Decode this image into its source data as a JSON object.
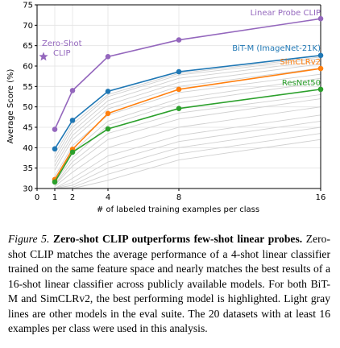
{
  "chart_data": {
    "type": "line",
    "xlabel": "# of labeled training examples per class",
    "ylabel": "Average Score (%)",
    "ylim": [
      30,
      75
    ],
    "xlim": [
      0,
      16
    ],
    "x_ticks": [
      0,
      1,
      2,
      4,
      8,
      16
    ],
    "y_ticks": [
      30,
      35,
      40,
      45,
      50,
      55,
      60,
      65,
      70,
      75
    ],
    "grid": true,
    "series": [
      {
        "name": "Linear Probe CLIP",
        "color": "#9467bd",
        "x": [
          1,
          2,
          4,
          8,
          16
        ],
        "values": [
          44.5,
          54.0,
          62.3,
          66.4,
          71.6
        ]
      },
      {
        "name": "BiT-M (ImageNet-21K)",
        "color": "#1f77b4",
        "x": [
          1,
          2,
          4,
          8,
          16
        ],
        "values": [
          39.7,
          46.7,
          53.8,
          58.6,
          62.6
        ]
      },
      {
        "name": "SimCLRv2",
        "color": "#ff7f0e",
        "x": [
          1,
          2,
          4,
          8,
          16
        ],
        "values": [
          32.2,
          39.6,
          48.4,
          54.3,
          59.4
        ]
      },
      {
        "name": "ResNet50",
        "color": "#2ca02c",
        "x": [
          1,
          2,
          4,
          8,
          16
        ],
        "values": [
          31.6,
          38.9,
          44.6,
          49.6,
          54.3
        ]
      }
    ],
    "background_models": [
      [
        33.0,
        40.5,
        48.0,
        53.5,
        58.0
      ],
      [
        34.5,
        42.0,
        49.5,
        55.0,
        59.5
      ],
      [
        35.5,
        43.0,
        50.5,
        56.0,
        60.5
      ],
      [
        36.5,
        44.0,
        51.5,
        57.0,
        61.2
      ],
      [
        37.5,
        45.0,
        52.5,
        57.8,
        61.8
      ],
      [
        38.5,
        45.8,
        53.0,
        58.2,
        62.2
      ],
      [
        32.5,
        39.0,
        46.5,
        52.0,
        57.0
      ],
      [
        31.5,
        37.5,
        45.5,
        51.0,
        56.0
      ],
      [
        31.0,
        36.5,
        43.5,
        48.5,
        53.0
      ],
      [
        30.8,
        35.5,
        42.0,
        47.0,
        52.0
      ],
      [
        30.5,
        34.0,
        40.0,
        45.0,
        50.0
      ],
      [
        30.0,
        32.5,
        38.0,
        43.0,
        48.0
      ],
      [
        30.0,
        31.5,
        36.5,
        41.5,
        46.5
      ],
      [
        30.0,
        30.8,
        35.0,
        40.0,
        45.0
      ],
      [
        30.0,
        30.3,
        33.5,
        38.5,
        43.5
      ],
      [
        30.0,
        30.0,
        32.0,
        37.0,
        42.0
      ]
    ],
    "zero_shot": {
      "label_line1": "Zero-Shot",
      "label_line2": "CLIP",
      "x": 0,
      "value": 62.3,
      "color": "#9467bd",
      "marker": "star"
    }
  },
  "caption": {
    "figure_label": "Figure 5.",
    "title": "Zero-shot CLIP outperforms few-shot linear probes.",
    "body": "Zero-shot CLIP matches the average performance of a 4-shot linear classifier trained on the same feature space and nearly matches the best results of a 16-shot linear classifier across publicly available models. For both BiT-M and SimCLRv2, the best performing model is highlighted. Light gray lines are other models in the eval suite. The 20 datasets with at least 16 examples per class were used in this analysis."
  }
}
